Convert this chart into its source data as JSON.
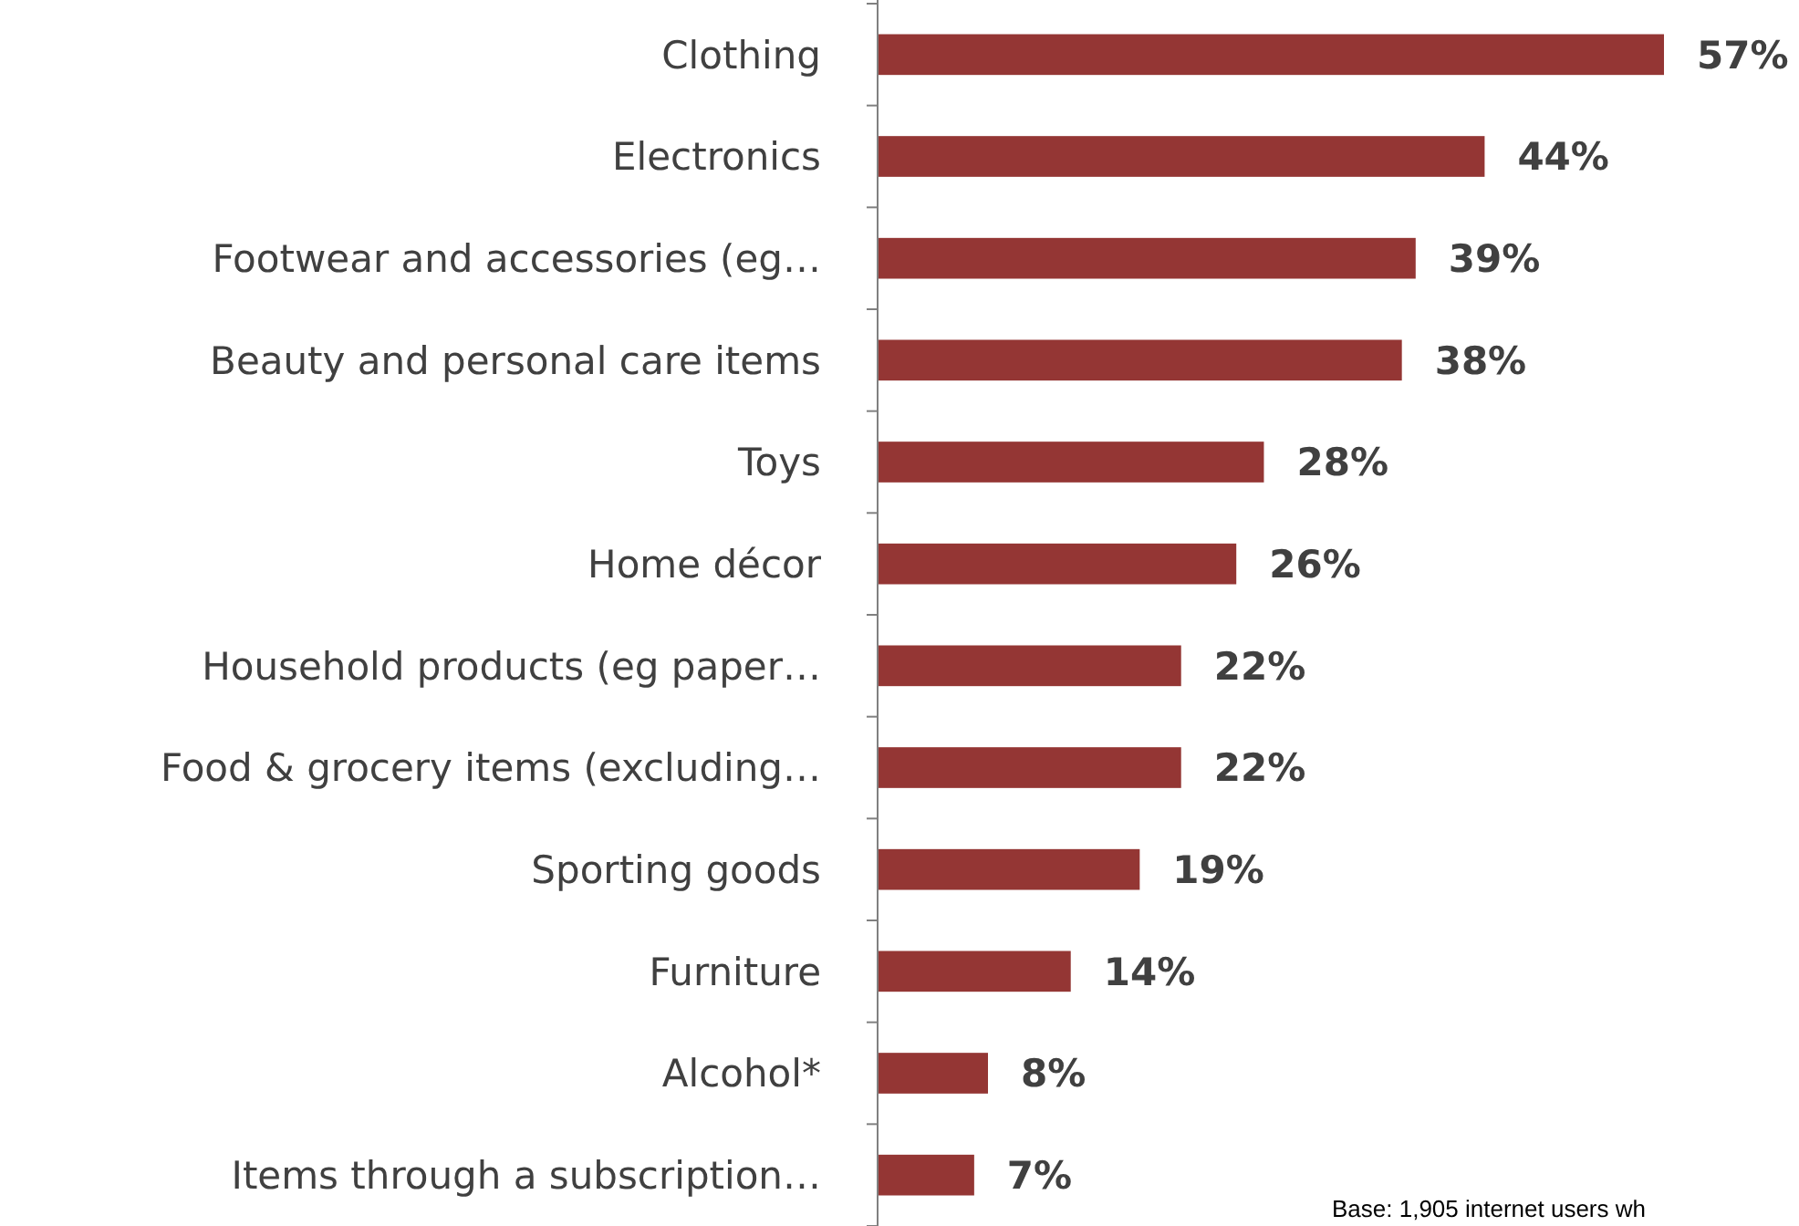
{
  "chart_data": {
    "type": "bar",
    "orientation": "horizontal",
    "categories": [
      "Clothing",
      "Electronics",
      "Footwear and accessories (eg…",
      "Beauty and personal care items",
      "Toys",
      "Home décor",
      "Household products (eg paper…",
      "Food & grocery items (excluding…",
      "Sporting goods",
      "Furniture",
      "Alcohol*",
      "Items through a subscription…"
    ],
    "values": [
      57,
      44,
      39,
      38,
      28,
      26,
      22,
      22,
      19,
      14,
      8,
      7
    ],
    "value_labels": [
      "57%",
      "44%",
      "39%",
      "38%",
      "28%",
      "26%",
      "22%",
      "22%",
      "19%",
      "14%",
      "8%",
      "7%"
    ],
    "color": "#943634",
    "annotations": [
      "Base: 1,905 internet users wh"
    ]
  }
}
